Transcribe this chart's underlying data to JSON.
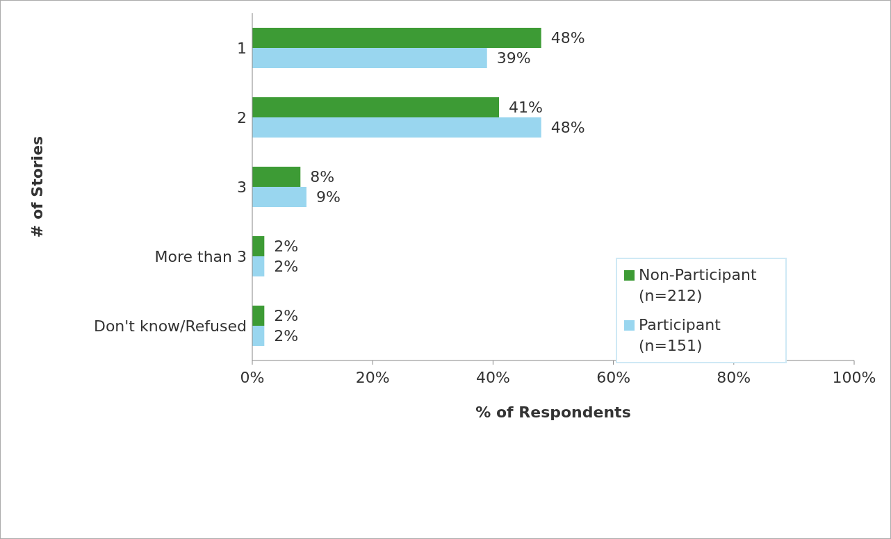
{
  "chart_data": {
    "type": "bar",
    "orientation": "horizontal",
    "xlabel": "% of Respondents",
    "ylabel": "# of Stories",
    "categories": [
      "1",
      "2",
      "3",
      "More than 3",
      "Don't know/Refused"
    ],
    "series": [
      {
        "name": "Non-Participant (n=212)",
        "color": "#3d9b35",
        "values": [
          48,
          41,
          8,
          2,
          2
        ],
        "value_labels": [
          "48%",
          "41%",
          "8%",
          "2%",
          "2%"
        ]
      },
      {
        "name": "Participant (n=151)",
        "color": "#99d6ef",
        "values": [
          39,
          48,
          9,
          2,
          2
        ],
        "value_labels": [
          "39%",
          "48%",
          "9%",
          "2%",
          "2%"
        ]
      }
    ],
    "xlim": [
      0,
      100
    ],
    "xticks": [
      {
        "value": 0,
        "label": "0%"
      },
      {
        "value": 20,
        "label": "20%"
      },
      {
        "value": 40,
        "label": "40%"
      },
      {
        "value": 60,
        "label": "60%"
      },
      {
        "value": 80,
        "label": "80%"
      },
      {
        "value": 100,
        "label": "100%"
      }
    ],
    "legend": "right"
  }
}
